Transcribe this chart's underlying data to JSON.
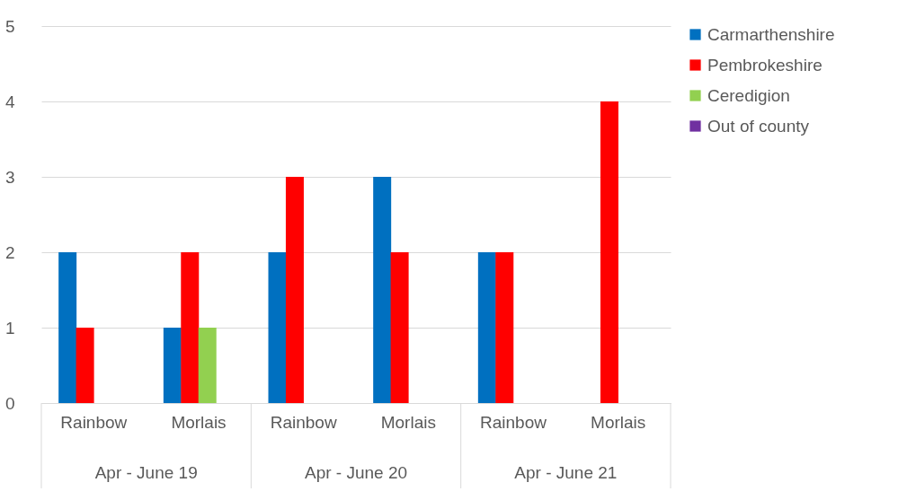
{
  "chart_data": {
    "type": "bar",
    "categories": [
      "Rainbow",
      "Morlais",
      "Rainbow",
      "Morlais",
      "Rainbow",
      "Morlais"
    ],
    "annotations": [
      "Apr - June 19",
      "Apr - June 20",
      "Apr - June 21"
    ],
    "series": [
      {
        "name": "Carmarthenshire",
        "color": "#0070c0",
        "values": [
          2,
          1,
          2,
          3,
          2,
          0
        ]
      },
      {
        "name": "Pembrokeshire",
        "color": "#ff0000",
        "values": [
          1,
          2,
          3,
          2,
          2,
          4
        ]
      },
      {
        "name": "Ceredigion",
        "color": "#92d050",
        "values": [
          0,
          1,
          0,
          0,
          0,
          0
        ]
      },
      {
        "name": "Out of county",
        "color": "#7030a0",
        "values": [
          0,
          0,
          0,
          0,
          0,
          0
        ]
      }
    ],
    "ylim": [
      0,
      5
    ],
    "yticks": [
      0,
      1,
      2,
      3,
      4,
      5
    ],
    "grid": "y",
    "legend": "right"
  }
}
